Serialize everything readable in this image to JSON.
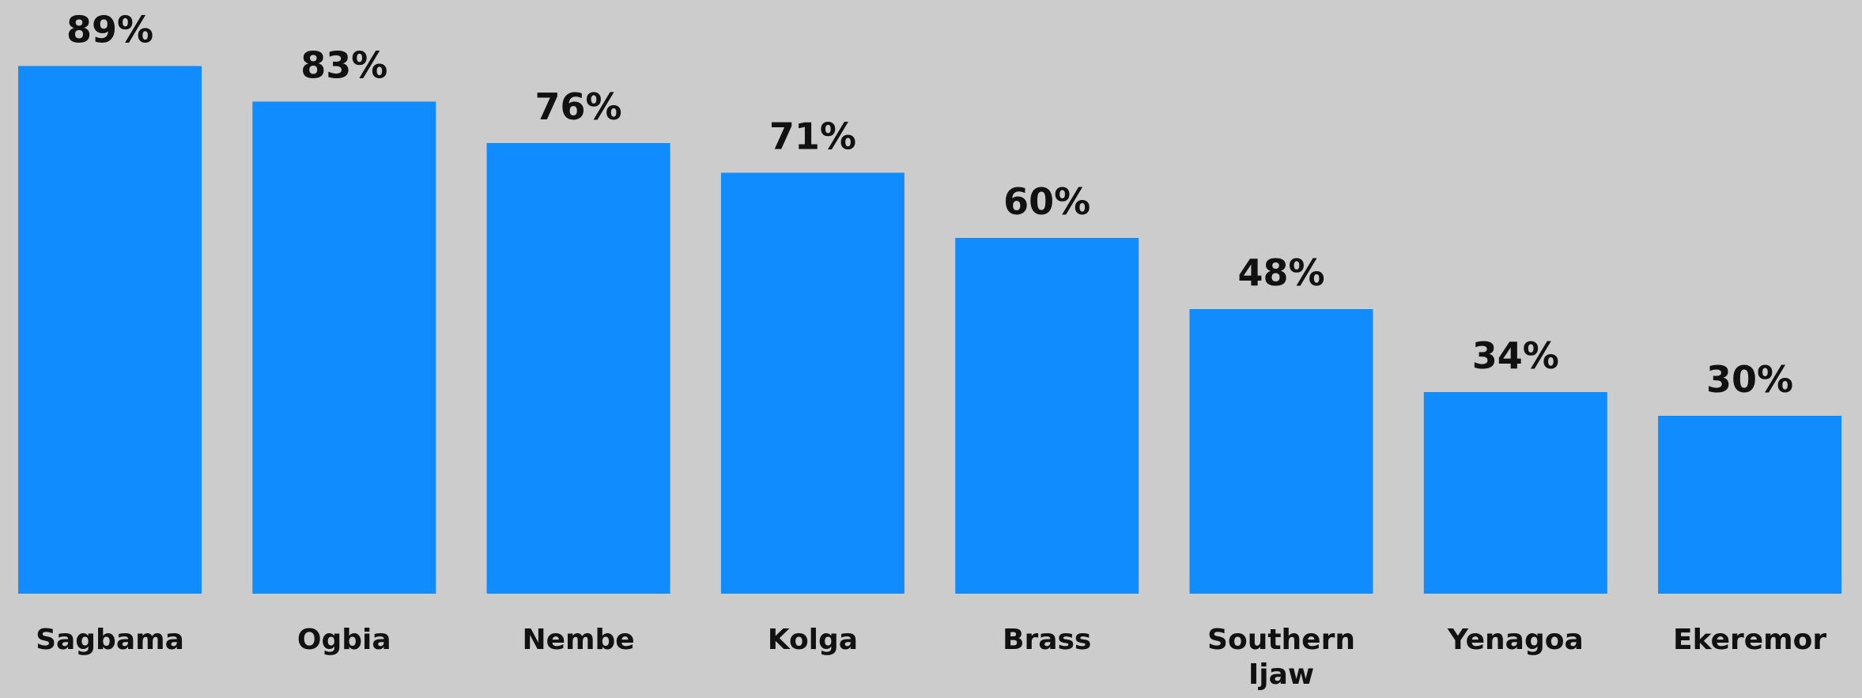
{
  "chart_data": {
    "type": "bar",
    "categories": [
      "Sagbama",
      "Ogbia",
      "Nembe",
      "Kolga",
      "Brass",
      "Southern Ijaw",
      "Yenagoa",
      "Ekeremor"
    ],
    "values": [
      89,
      83,
      76,
      71,
      60,
      48,
      34,
      30
    ],
    "value_labels": [
      "89%",
      "83%",
      "76%",
      "71%",
      "60%",
      "48%",
      "34%",
      "30%"
    ],
    "color": "#118cff"
  }
}
